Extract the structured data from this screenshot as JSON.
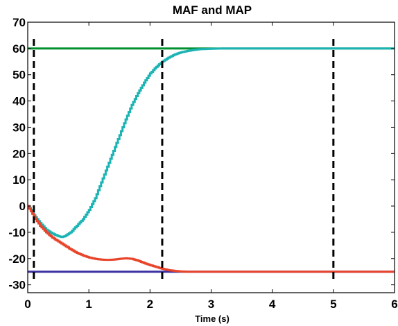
{
  "chart_data": {
    "type": "line",
    "title": "MAF and MAP",
    "xlabel": "Time (s)",
    "ylabel": "",
    "xlim": [
      0,
      6
    ],
    "ylim": [
      -33,
      70
    ],
    "xticks": [
      "0",
      "1",
      "2",
      "3",
      "4",
      "5",
      "6"
    ],
    "yticks": [
      "-30",
      "-20",
      "-10",
      "0",
      "10",
      "20",
      "30",
      "40",
      "50",
      "60",
      "70"
    ],
    "grid": false,
    "series": [
      {
        "color": "#008f2e",
        "style": "solid",
        "x": [
          0,
          6
        ],
        "y": [
          60,
          60
        ]
      },
      {
        "color": "#3a2fa0",
        "style": "solid",
        "x": [
          0,
          6
        ],
        "y": [
          -25,
          -25
        ]
      },
      {
        "color": "#1bb3b3",
        "style": "staircase",
        "x": [
          0,
          0.05,
          0.1,
          0.2,
          0.3,
          0.4,
          0.5,
          0.55,
          0.6,
          0.7,
          0.8,
          0.9,
          1.0,
          1.1,
          1.2,
          1.3,
          1.4,
          1.5,
          1.6,
          1.7,
          1.8,
          1.9,
          2.0,
          2.1,
          2.2,
          2.3,
          2.4,
          2.5,
          2.6,
          2.7,
          2.8,
          3.0,
          3.2,
          3.5,
          4.0,
          6.0
        ],
        "y": [
          0,
          -1.5,
          -3.5,
          -6.5,
          -9,
          -10.5,
          -11.5,
          -11.8,
          -11.5,
          -10,
          -7.5,
          -5,
          -1.5,
          3,
          9,
          15,
          21,
          27,
          33,
          38.5,
          43,
          47,
          50.5,
          53,
          55,
          56.5,
          57.7,
          58.5,
          59,
          59.4,
          59.7,
          59.9,
          60,
          60,
          60,
          60
        ]
      },
      {
        "color": "#e8442a",
        "style": "staircase",
        "x": [
          0,
          0.1,
          0.2,
          0.3,
          0.4,
          0.5,
          0.6,
          0.7,
          0.8,
          0.9,
          1.0,
          1.1,
          1.2,
          1.3,
          1.4,
          1.5,
          1.6,
          1.7,
          1.8,
          1.9,
          2.0,
          2.1,
          2.2,
          2.3,
          2.4,
          2.5,
          2.6,
          2.7,
          3.0,
          4.0,
          6.0
        ],
        "y": [
          0,
          -4,
          -7.5,
          -10,
          -12,
          -13.5,
          -15,
          -16.5,
          -17.8,
          -18.8,
          -19.6,
          -20.1,
          -20.4,
          -20.5,
          -20.4,
          -20.1,
          -19.9,
          -20.1,
          -20.8,
          -21.7,
          -22.5,
          -23.2,
          -23.9,
          -24.4,
          -24.7,
          -24.9,
          -25,
          -25,
          -25,
          -25,
          -25
        ]
      }
    ],
    "vlines": [
      {
        "x": 0.1,
        "color": "#000000",
        "style": "dashed"
      },
      {
        "x": 2.2,
        "color": "#000000",
        "style": "dashed"
      },
      {
        "x": 5.0,
        "color": "#000000",
        "style": "dashed"
      }
    ]
  }
}
